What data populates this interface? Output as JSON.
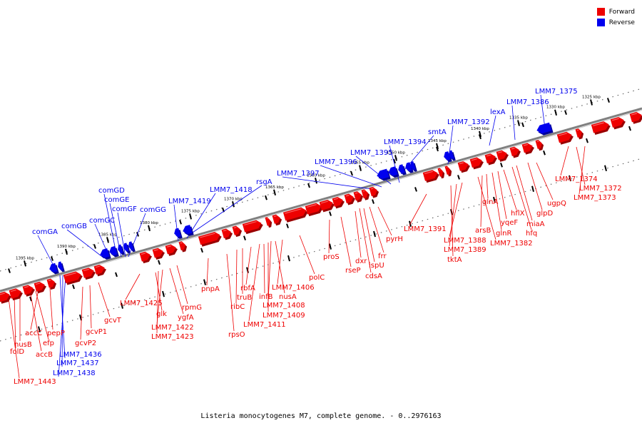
{
  "colors": {
    "forward": "#ee0000",
    "reverse": "#0000ee",
    "backbone": "#808080"
  },
  "legend": {
    "forward": "Forward",
    "reverse": "Reverse"
  },
  "caption": "Listeria monocytogenes M7, complete genome. - 0..2976163",
  "ruler": {
    "upper": [
      "1325 kbp",
      "1330 kbp",
      "1335 kbp",
      "1340 kbp",
      "1345 kbp",
      "1350 kbp",
      "1355 kbp",
      "1360 kbp",
      "1365 kbp",
      "1370 kbp",
      "1375 kbp",
      "1380 kbp",
      "1385 kbp",
      "1390 kbp",
      "1395 kbp"
    ]
  },
  "reverse_labels": [
    "LMM7_1375",
    "LMM7_1386",
    "lexA",
    "LMM7_1392",
    "smtA",
    "LMM7_1394",
    "LMM7_1395",
    "LMM7_1396",
    "LMM7_1397",
    "rsgA",
    "LMM7_1418",
    "LMM7_1419",
    "comGG",
    "comGF",
    "comGE",
    "comGD",
    "comGC",
    "comGB",
    "comGA",
    "LMM7_1436",
    "LMM7_1437",
    "LMM7_1438"
  ],
  "forward_labels": [
    "LMM7_1374",
    "LMM7_1372",
    "LMM7_1373",
    "ugpQ",
    "glpD",
    "miaA",
    "hfq",
    "hflX",
    "yqeF",
    "glnR",
    "glnA",
    "arsB",
    "LMM7_1382",
    "LMM7_1388",
    "LMM7_1389",
    "tktA",
    "LMM7_1391",
    "pyrH",
    "frr",
    "ispU",
    "cdsA",
    "dxr",
    "rseP",
    "proS",
    "polC",
    "LMM7_1406",
    "nusA",
    "LMM7_1408",
    "LMM7_1409",
    "infB",
    "LMM7_1411",
    "rbfA",
    "truB",
    "ribC",
    "rpsO",
    "pnpA",
    "rpmG",
    "ygfA",
    "LMM7_1422",
    "LMM7_1423",
    "glk",
    "LMM7_1425",
    "gcvT",
    "gcvP1",
    "gcvP2",
    "pepP",
    "accC",
    "efp",
    "accB",
    "nusB",
    "folD",
    "LMM7_1443"
  ]
}
